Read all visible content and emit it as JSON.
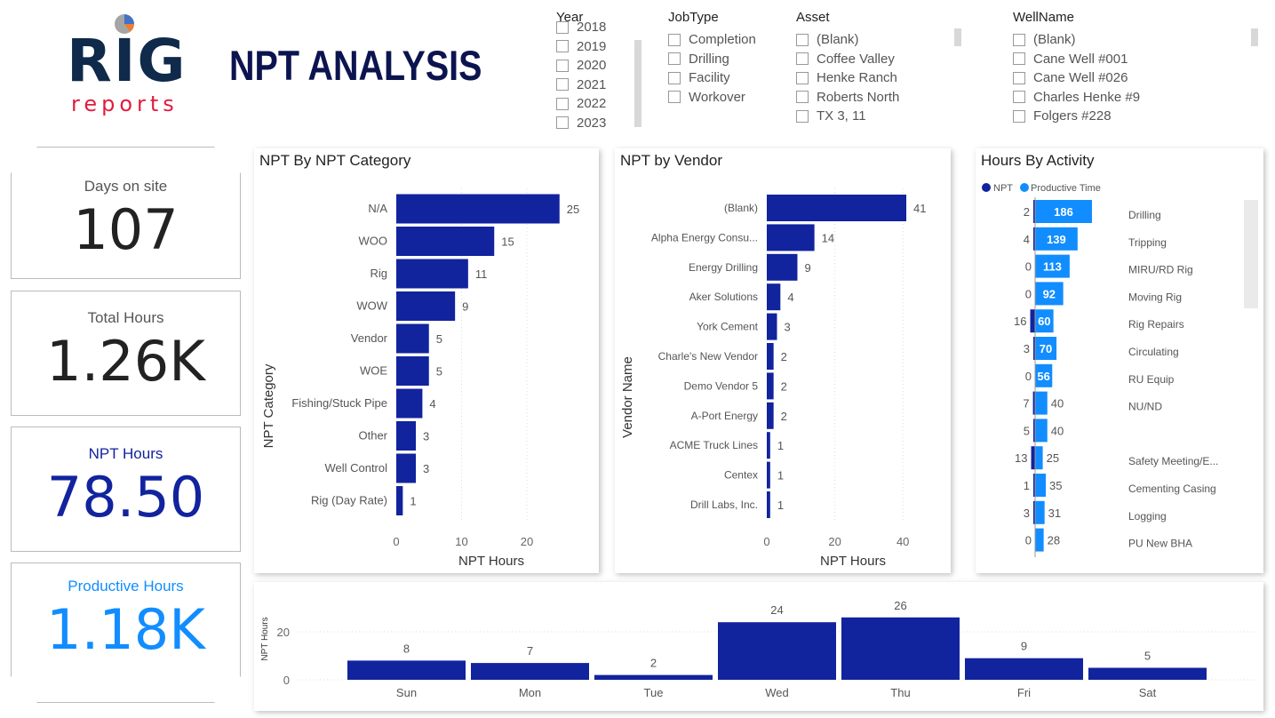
{
  "header": {
    "logo_top": "RIG",
    "logo_bottom": "reports",
    "title": "NPT ANALYSIS"
  },
  "slicers": {
    "year": {
      "title": "Year",
      "items": [
        "2018",
        "2019",
        "2020",
        "2021",
        "2022",
        "2023"
      ]
    },
    "jobtype": {
      "title": "JobType",
      "items": [
        "Completion",
        "Drilling",
        "Facility",
        "Workover"
      ]
    },
    "asset": {
      "title": "Asset",
      "items": [
        "(Blank)",
        "Coffee Valley",
        "Henke Ranch",
        "Roberts North",
        "TX 3, 11"
      ]
    },
    "wellname": {
      "title": "WellName",
      "items": [
        "(Blank)",
        "Cane Well #001",
        "Cane Well #026",
        "Charles Henke #9",
        "Folgers #228"
      ]
    }
  },
  "kpis": [
    {
      "label": "Days on site",
      "value": "107",
      "color": "#222222"
    },
    {
      "label": "Total Hours",
      "value": "1.26K",
      "color": "#222222"
    },
    {
      "label": "NPT Hours",
      "value": "78.50",
      "color": "#12239e"
    },
    {
      "label": "Productive Hours",
      "value": "1.18K",
      "color": "#118dff"
    }
  ],
  "colors": {
    "npt": "#12239e",
    "productive": "#118dff"
  },
  "chart_data": [
    {
      "type": "bar",
      "orientation": "horizontal",
      "title": "NPT By NPT Category",
      "xlabel": "NPT Hours",
      "ylabel": "NPT Category",
      "xlim": [
        0,
        28
      ],
      "xticks": [
        0,
        10,
        20
      ],
      "categories": [
        "N/A",
        "WOO",
        "Rig",
        "WOW",
        "Vendor",
        "WOE",
        "Fishing/Stuck Pipe",
        "Other",
        "Well Control",
        "Rig (Day Rate)"
      ],
      "values": [
        25,
        15,
        11,
        9,
        5,
        5,
        4,
        3,
        3,
        1
      ]
    },
    {
      "type": "bar",
      "orientation": "horizontal",
      "title": "NPT by Vendor",
      "xlabel": "NPT Hours",
      "ylabel": "Vendor Name",
      "xlim": [
        0,
        47
      ],
      "xticks": [
        0,
        20,
        40
      ],
      "categories": [
        "(Blank)",
        "Alpha Energy Consu...",
        "Energy Drilling",
        "Aker Solutions",
        "York Cement",
        "Charle's New Vendor",
        "Demo Vendor 5",
        "A-Port Energy",
        "ACME Truck Lines",
        "Centex",
        "Drill Labs, Inc."
      ],
      "values": [
        41,
        14,
        9,
        4,
        3,
        2,
        2,
        2,
        1,
        1,
        1
      ]
    },
    {
      "type": "bar",
      "orientation": "horizontal",
      "stacked": "diverging",
      "title": "Hours By Activity",
      "legend": "top-left",
      "categories": [
        "Drilling",
        "Tripping",
        "MIRU/RD Rig",
        "Moving Rig",
        "Rig Repairs",
        "Circulating",
        "RU Equip",
        "NU/ND",
        "",
        "Safety Meeting/E...",
        "Cementing Casing",
        "Logging",
        "PU New BHA"
      ],
      "series": [
        {
          "name": "NPT",
          "values": [
            2,
            4,
            0,
            0,
            16,
            3,
            0,
            7,
            5,
            13,
            1,
            3,
            0
          ]
        },
        {
          "name": "Productive Time",
          "values": [
            186,
            139,
            113,
            92,
            60,
            70,
            56,
            40,
            40,
            25,
            35,
            31,
            28
          ]
        }
      ]
    },
    {
      "type": "bar",
      "ylabel": "NPT Hours",
      "ylim": [
        0,
        28
      ],
      "yticks": [
        0,
        20
      ],
      "categories": [
        "Sun",
        "Mon",
        "Tue",
        "Wed",
        "Thu",
        "Fri",
        "Sat"
      ],
      "values": [
        8,
        7,
        2,
        24,
        26,
        9,
        5
      ]
    }
  ]
}
